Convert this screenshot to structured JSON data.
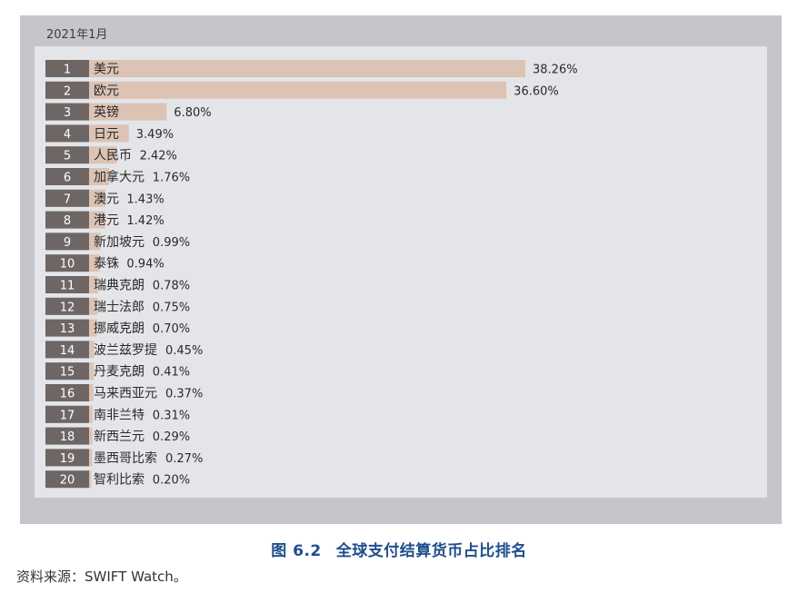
{
  "chart_data": {
    "type": "bar",
    "orientation": "horizontal",
    "period": "2021年1月",
    "title": "全球支付结算货币占比排名",
    "figure_number": "图 6.2",
    "source": "资料来源：SWIFT Watch。",
    "value_unit": "%",
    "xlim": [
      0,
      38.26
    ],
    "ranks": [
      "1",
      "2",
      "3",
      "4",
      "5",
      "6",
      "7",
      "8",
      "9",
      "10",
      "11",
      "12",
      "13",
      "14",
      "15",
      "16",
      "17",
      "18",
      "19",
      "20"
    ],
    "categories": [
      "美元",
      "欧元",
      "英镑",
      "日元",
      "人民币",
      "加拿大元",
      "澳元",
      "港元",
      "新加坡元",
      "泰铢",
      "瑞典克朗",
      "瑞士法郎",
      "挪威克朗",
      "波兰兹罗提",
      "丹麦克朗",
      "马来西亚元",
      "南非兰特",
      "新西兰元",
      "墨西哥比索",
      "智利比索"
    ],
    "values": [
      38.26,
      36.6,
      6.8,
      3.49,
      2.42,
      1.76,
      1.43,
      1.42,
      0.99,
      0.94,
      0.78,
      0.75,
      0.7,
      0.45,
      0.41,
      0.37,
      0.31,
      0.29,
      0.27,
      0.2
    ],
    "value_labels": [
      "38.26%",
      "36.60%",
      "6.80%",
      "3.49%",
      "2.42%",
      "1.76%",
      "1.43%",
      "1.42%",
      "0.99%",
      "0.94%",
      "0.78%",
      "0.75%",
      "0.70%",
      "0.45%",
      "0.41%",
      "0.37%",
      "0.31%",
      "0.29%",
      "0.27%",
      "0.20%"
    ],
    "colors": {
      "bar": "#dcc3b4",
      "rank_box": "#6e6665",
      "rank_text": "#ffffff",
      "text": "#2a2a2a"
    }
  }
}
